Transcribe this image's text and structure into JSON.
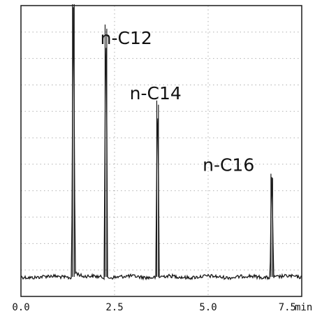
{
  "chart_data": {
    "type": "line",
    "title": "",
    "xlabel": "min",
    "ylabel": "",
    "xlim": [
      0,
      7.5
    ],
    "x_ticks": [
      {
        "value": 0,
        "label": "0.0"
      },
      {
        "value": 2.5,
        "label": "2.5"
      },
      {
        "value": 5.0,
        "label": "5.0"
      },
      {
        "value": 7.5,
        "label": "7.5"
      }
    ],
    "x_unit": "min",
    "grid": true,
    "grid_style": "dotted",
    "line_color": "#1a1a1a",
    "frame_color": "#1a1a1a",
    "grid_color": "#b0b0b0",
    "peaks": [
      {
        "label": "",
        "x": 1.4,
        "height": 1.0,
        "off_scale": true
      },
      {
        "label": "n-C12",
        "x": 2.27,
        "height": 0.93
      },
      {
        "label": "n-C14",
        "x": 3.65,
        "height": 0.65
      },
      {
        "label": "n-C16",
        "x": 6.7,
        "height": 0.38
      }
    ]
  }
}
